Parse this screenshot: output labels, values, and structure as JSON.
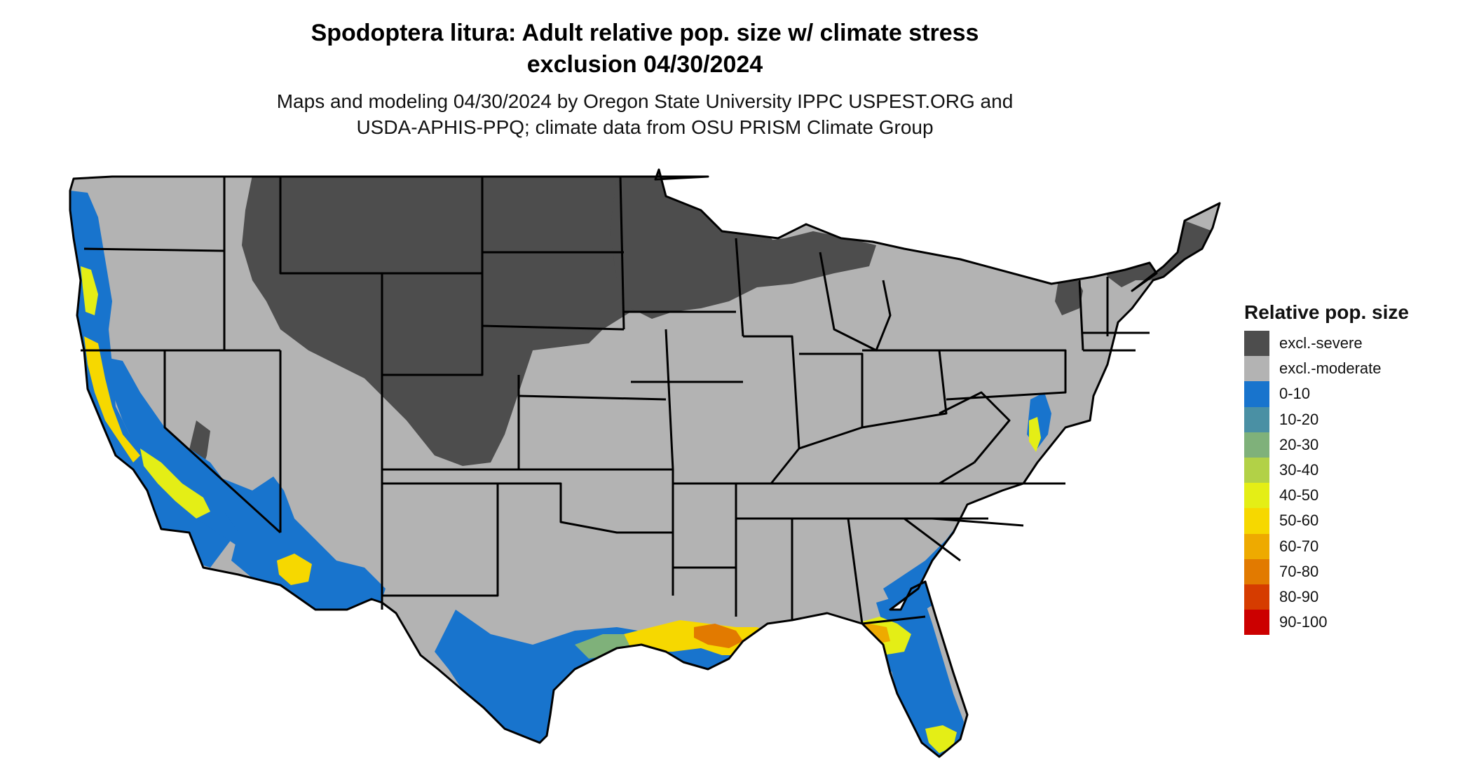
{
  "title": {
    "line1": "Spodoptera litura: Adult relative pop. size w/ climate stress",
    "line2": "exclusion 04/30/2024"
  },
  "subtitle": {
    "line1": "Maps and modeling 04/30/2024 by Oregon State University IPPC USPEST.ORG and",
    "line2": "USDA-APHIS-PPQ; climate data from OSU PRISM Climate Group"
  },
  "legend": {
    "title": "Relative pop. size",
    "items": [
      {
        "label": "excl.-severe",
        "color": "#4d4d4d"
      },
      {
        "label": "excl.-moderate",
        "color": "#b3b3b3"
      },
      {
        "label": "0-10",
        "color": "#1874cd"
      },
      {
        "label": "10-20",
        "color": "#4a90a4"
      },
      {
        "label": "20-30",
        "color": "#7fb17a"
      },
      {
        "label": "30-40",
        "color": "#b2d147"
      },
      {
        "label": "40-50",
        "color": "#e4ee16"
      },
      {
        "label": "50-60",
        "color": "#f6d800"
      },
      {
        "label": "60-70",
        "color": "#eeaa00"
      },
      {
        "label": "70-80",
        "color": "#e27a00"
      },
      {
        "label": "80-90",
        "color": "#d63c00"
      },
      {
        "label": "90-100",
        "color": "#cc0000"
      }
    ]
  }
}
